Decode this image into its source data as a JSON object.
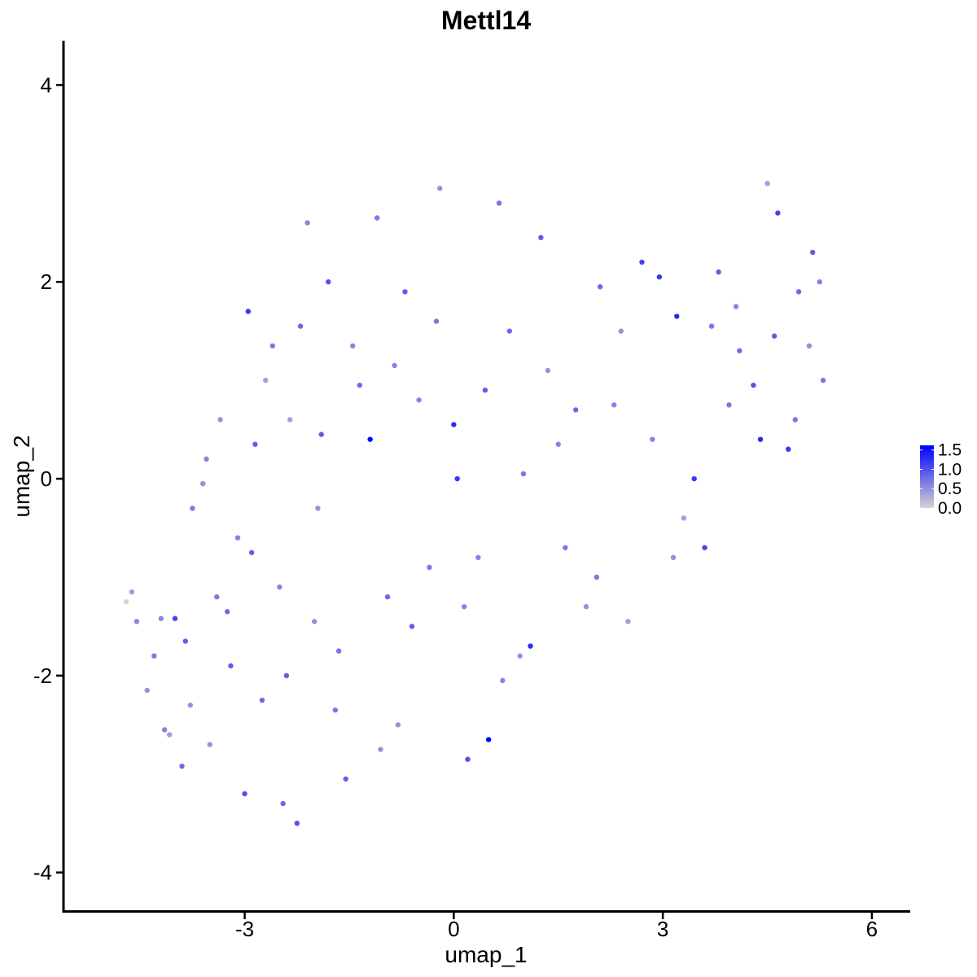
{
  "chart_data": {
    "type": "scatter",
    "title": "Mettl14",
    "xlabel": "umap_1",
    "ylabel": "umap_2",
    "xlim": [
      -5.6,
      6.55
    ],
    "ylim": [
      -4.4,
      4.45
    ],
    "x_ticks": [
      -3,
      0,
      3,
      6
    ],
    "x_tick_labels": [
      "-3",
      "0",
      "3",
      "6"
    ],
    "y_ticks": [
      -4,
      -2,
      0,
      2,
      4
    ],
    "y_tick_labels": [
      "-4",
      "-2",
      "0",
      "2",
      "4"
    ],
    "grid": false,
    "legend_placement": "right",
    "color_scale": {
      "low_color": "#d3d3d3",
      "high_color": "#0000ff",
      "min": 0.0,
      "max": 1.62,
      "breaks": [
        0.0,
        0.5,
        1.0,
        1.5
      ],
      "break_labels": [
        "0.0",
        "0.5",
        "1.0",
        "1.5"
      ]
    },
    "series": [
      {
        "values": [
          [
            -4.7,
            -1.25,
            0
          ],
          [
            -4.62,
            -1.15,
            0.4
          ],
          [
            -4.55,
            -1.45,
            0.6
          ],
          [
            -4.4,
            -2.15,
            0.5
          ],
          [
            -4.3,
            -1.8,
            0.7
          ],
          [
            -4.2,
            -1.42,
            0.6
          ],
          [
            -4.08,
            -2.6,
            0.4
          ],
          [
            -4.0,
            -1.42,
            1.1
          ],
          [
            -3.9,
            -2.92,
            0.8
          ],
          [
            -3.78,
            -2.3,
            0.5
          ],
          [
            -3.75,
            -0.3,
            0.7
          ],
          [
            -3.6,
            -0.05,
            0.5
          ],
          [
            -3.55,
            0.2,
            0.6
          ],
          [
            -3.4,
            -1.2,
            0.7
          ],
          [
            -3.35,
            0.6,
            0.5
          ],
          [
            -3.2,
            -1.9,
            0.9
          ],
          [
            -3.1,
            -0.6,
            0.6
          ],
          [
            -3.0,
            -3.2,
            1.0
          ],
          [
            -2.95,
            1.7,
            1.2
          ],
          [
            -2.85,
            0.35,
            0.9
          ],
          [
            -2.75,
            -2.25,
            0.8
          ],
          [
            -2.6,
            1.35,
            0.7
          ],
          [
            -2.5,
            -1.1,
            0.6
          ],
          [
            -2.45,
            -3.3,
            0.8
          ],
          [
            -2.35,
            0.6,
            0.4
          ],
          [
            -2.25,
            -3.5,
            1.0
          ],
          [
            -2.1,
            2.6,
            0.6
          ],
          [
            -2.0,
            -1.45,
            0.5
          ],
          [
            -1.9,
            0.45,
            0.9
          ],
          [
            -1.8,
            2.0,
            1.0
          ],
          [
            -1.7,
            -2.35,
            0.7
          ],
          [
            -1.55,
            -3.05,
            0.9
          ],
          [
            -1.45,
            1.35,
            0.6
          ],
          [
            -1.2,
            0.4,
            1.6
          ],
          [
            -1.1,
            2.65,
            0.7
          ],
          [
            -0.95,
            -1.2,
            0.8
          ],
          [
            -0.8,
            -2.5,
            0.5
          ],
          [
            -0.7,
            1.9,
            0.9
          ],
          [
            -0.5,
            0.8,
            0.6
          ],
          [
            -0.35,
            -0.9,
            0.7
          ],
          [
            -0.2,
            2.95,
            0.5
          ],
          [
            0.0,
            0.55,
            1.3
          ],
          [
            0.05,
            0.0,
            1.2
          ],
          [
            0.2,
            -2.85,
            1.0
          ],
          [
            0.35,
            -0.8,
            0.6
          ],
          [
            0.5,
            -2.65,
            1.6
          ],
          [
            0.65,
            2.8,
            0.7
          ],
          [
            0.8,
            1.5,
            0.8
          ],
          [
            0.95,
            -1.8,
            0.5
          ],
          [
            1.1,
            -1.7,
            1.3
          ],
          [
            1.25,
            2.45,
            0.9
          ],
          [
            1.5,
            0.35,
            0.6
          ],
          [
            1.6,
            -0.7,
            0.7
          ],
          [
            1.9,
            -1.3,
            0.5
          ],
          [
            2.1,
            1.95,
            0.8
          ],
          [
            2.3,
            0.75,
            0.6
          ],
          [
            2.5,
            -1.45,
            0.4
          ],
          [
            2.7,
            2.2,
            1.1
          ],
          [
            2.95,
            2.05,
            1.2
          ],
          [
            3.15,
            -0.8,
            0.5
          ],
          [
            3.2,
            1.65,
            1.3
          ],
          [
            3.45,
            0.0,
            1.2
          ],
          [
            3.6,
            -0.7,
            1.1
          ],
          [
            3.8,
            2.1,
            0.9
          ],
          [
            3.95,
            0.75,
            0.7
          ],
          [
            4.1,
            1.3,
            0.8
          ],
          [
            4.3,
            0.95,
            1.0
          ],
          [
            4.4,
            0.4,
            1.3
          ],
          [
            4.5,
            3.0,
            0.4
          ],
          [
            4.65,
            2.7,
            1.1
          ],
          [
            4.8,
            0.3,
            1.2
          ],
          [
            4.95,
            1.9,
            0.8
          ],
          [
            5.15,
            2.3,
            0.9
          ],
          [
            5.25,
            2.0,
            0.6
          ],
          [
            5.3,
            1.0,
            0.7
          ],
          [
            -4.15,
            -2.55,
            0.6
          ],
          [
            -3.85,
            -1.65,
            0.9
          ],
          [
            -3.5,
            -2.7,
            0.5
          ],
          [
            -3.25,
            -1.35,
            0.8
          ],
          [
            -2.9,
            -0.75,
            0.9
          ],
          [
            -2.7,
            1.0,
            0.4
          ],
          [
            -2.4,
            -2.0,
            0.9
          ],
          [
            -2.2,
            1.55,
            0.8
          ],
          [
            -1.95,
            -0.3,
            0.5
          ],
          [
            -1.65,
            -1.75,
            0.7
          ],
          [
            -1.35,
            0.95,
            0.8
          ],
          [
            -1.05,
            -2.75,
            0.5
          ],
          [
            -0.85,
            1.15,
            0.6
          ],
          [
            -0.6,
            -1.5,
            0.9
          ],
          [
            -0.25,
            1.6,
            0.7
          ],
          [
            0.15,
            -1.3,
            0.6
          ],
          [
            0.45,
            0.9,
            0.9
          ],
          [
            0.7,
            -2.05,
            0.6
          ],
          [
            1.0,
            0.05,
            0.7
          ],
          [
            1.35,
            1.1,
            0.5
          ],
          [
            1.75,
            0.7,
            0.8
          ],
          [
            2.05,
            -1.0,
            0.7
          ],
          [
            2.4,
            1.5,
            0.5
          ],
          [
            2.85,
            0.4,
            0.6
          ],
          [
            3.3,
            -0.4,
            0.4
          ],
          [
            3.7,
            1.55,
            0.7
          ],
          [
            4.05,
            1.75,
            0.6
          ],
          [
            4.6,
            1.45,
            0.9
          ],
          [
            4.9,
            0.6,
            0.7
          ],
          [
            5.1,
            1.35,
            0.5
          ]
        ]
      }
    ]
  }
}
